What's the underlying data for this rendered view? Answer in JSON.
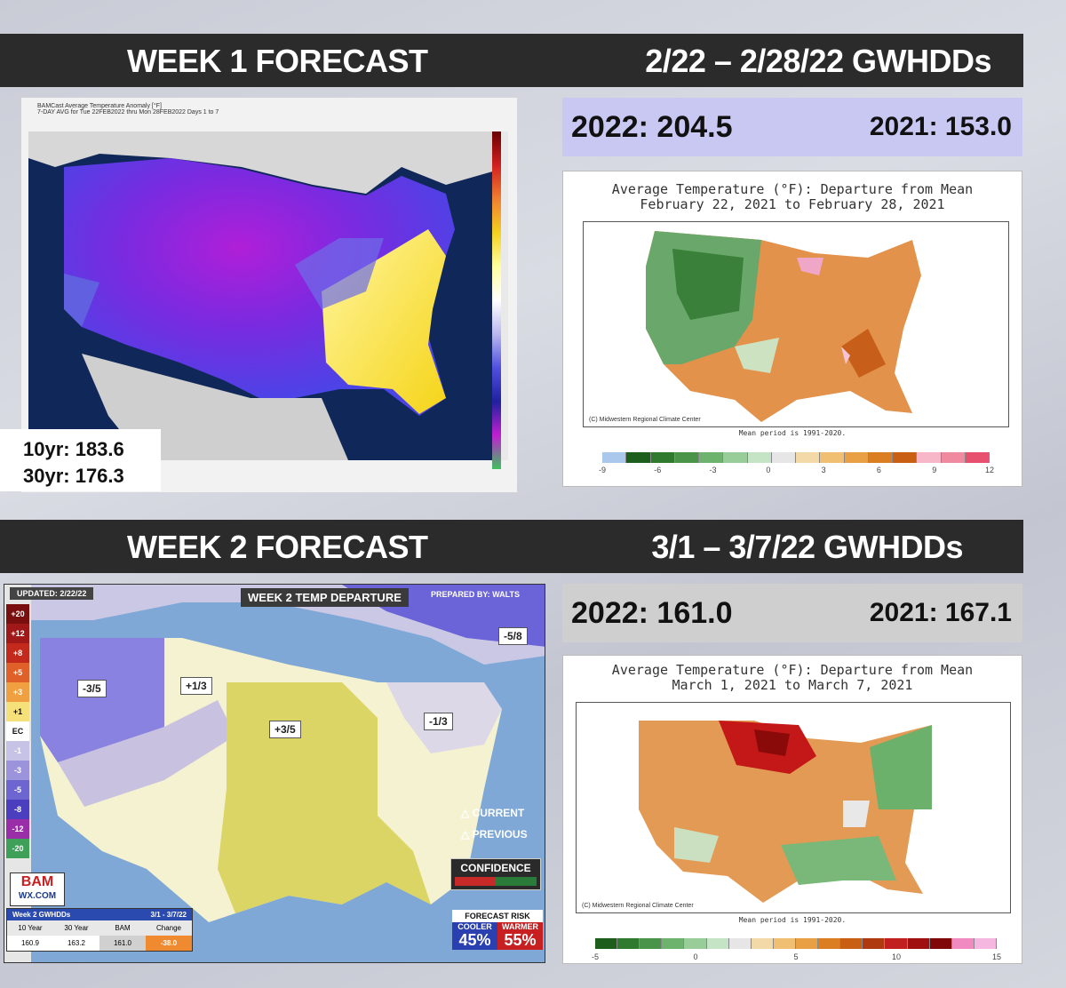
{
  "week1": {
    "title": "WEEK 1 FORECAST",
    "range": "2/22 – 2/28/22 GWHDDs",
    "gwhdd_2022": "2022: 204.5",
    "gwhdd_2021": "2021: 153.0",
    "avg_10yr": "10yr: 183.6",
    "avg_30yr": "30yr: 176.3",
    "map_title": "BAMCast Average Temperature Anomaly [°F]",
    "map_subtitle": "7-DAY AVG for Tue 22FEB2022 thru Mon 28FEB2022 Days 1 to 7",
    "anomaly_title_line1": "Average Temperature (°F): Departure from Mean",
    "anomaly_title_line2": "February 22, 2021 to February 28, 2021",
    "credit": "(C) Midwestern Regional Climate Center",
    "mean_period": "Mean period is 1991-2020.",
    "legend_ticks": [
      "-9",
      "-6",
      "-3",
      "0",
      "3",
      "6",
      "9",
      "12"
    ],
    "legend_colors": [
      "#a9c8ec",
      "#1d5e1d",
      "#2f7a2f",
      "#4a944a",
      "#6db26d",
      "#98cc98",
      "#c5e3c5",
      "#e6e6e6",
      "#f4d9a8",
      "#f0bf72",
      "#e9a045",
      "#db7e22",
      "#c85f12",
      "#f7b7c9",
      "#f08aa0",
      "#e85070"
    ]
  },
  "week2": {
    "title": "WEEK 2 FORECAST",
    "range": "3/1 – 3/7/22 GWHDDs",
    "gwhdd_2022": "2022: 161.0",
    "gwhdd_2021": "2021: 167.1",
    "map": {
      "updated": "UPDATED: 2/22/22",
      "title": "WEEK 2 TEMP DEPARTURE",
      "prepared": "PREPARED BY: WALTS",
      "labels": [
        "-3/5",
        "+1/3",
        "+3/5",
        "-1/3",
        "-5/8"
      ],
      "scale": [
        "+20",
        "+12",
        "+8",
        "+5",
        "+3",
        "+1",
        "EC",
        "-1",
        "-3",
        "-5",
        "-8",
        "-12",
        "-20"
      ],
      "scale_colors": [
        "#7a0f0f",
        "#a01818",
        "#c42a1c",
        "#e0602a",
        "#f0a040",
        "#f5e07a",
        "#ffffff",
        "#c7c3e6",
        "#9b94dc",
        "#6e66d0",
        "#4b3fc0",
        "#9a2ea8",
        "#3fa05a"
      ],
      "current": "CURRENT",
      "previous": "PREVIOUS",
      "confidence": "CONFIDENCE",
      "forecast_risk": "FORECAST RISK",
      "cooler_label": "COOLER",
      "warmer_label": "WARMER",
      "cooler_pct": "45%",
      "warmer_pct": "55%",
      "logo_top": "BAM",
      "logo_bottom": "WX.COM",
      "table_title": "Week 2 GWHDDs",
      "table_range": "3/1 - 3/7/22",
      "table_headers": [
        "10 Year",
        "30 Year",
        "BAM",
        "Change"
      ],
      "table_values": [
        "160.9",
        "163.2",
        "161.0",
        "-38.0"
      ]
    },
    "anomaly_title_line1": "Average Temperature (°F): Departure from Mean",
    "anomaly_title_line2": "March 1, 2021 to March 7, 2021",
    "credit": "(C) Midwestern Regional Climate Center",
    "mean_period": "Mean period is 1991-2020.",
    "legend_ticks": [
      "-5",
      "0",
      "5",
      "10",
      "15"
    ],
    "legend_colors": [
      "#1d5e1d",
      "#2f7a2f",
      "#4a944a",
      "#6db26d",
      "#98cc98",
      "#c5e3c5",
      "#e6e6e6",
      "#f4d9a8",
      "#f0bf72",
      "#e9a045",
      "#db7e22",
      "#c85f12",
      "#b03a10",
      "#c02020",
      "#a01010",
      "#800808",
      "#f08ac0",
      "#f5b7e0"
    ]
  }
}
